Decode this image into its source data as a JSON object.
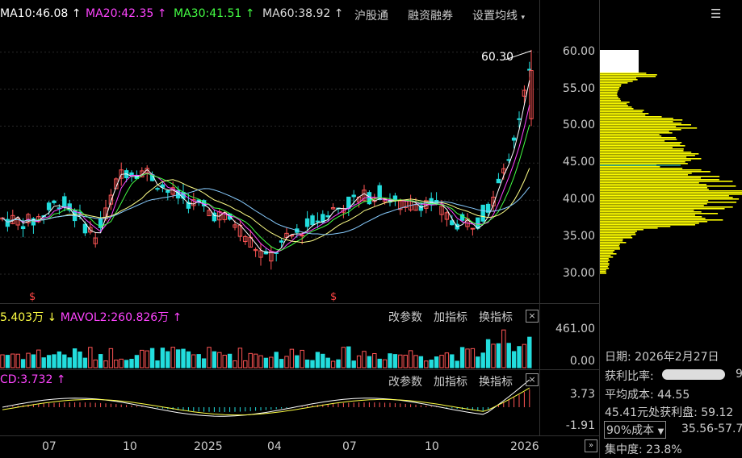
{
  "header": {
    "ma10": "MA10:46.08",
    "ma20": "MA20:42.35",
    "ma30": "MA30:41.51",
    "ma60": "MA60:38.92",
    "hgt": "沪股通",
    "margin": "融资融券",
    "settings": "设置均线"
  },
  "price_axis": [
    "60.00",
    "55.00",
    "50.00",
    "45.00",
    "40.00",
    "35.00",
    "30.00"
  ],
  "peak_label": "60.30",
  "vol_panel": {
    "mavol1": "5.403万",
    "mavol2": "MAVOL2:260.826万",
    "axis": [
      "461.00",
      "0.00"
    ]
  },
  "macd_panel": {
    "label": "CD:3.732",
    "axis": [
      "3.73",
      "-1.91"
    ]
  },
  "buttons": {
    "param": "改参数",
    "add": "加指标",
    "swap": "换指标",
    "close": "×"
  },
  "x_axis": [
    "07",
    "10",
    "2025",
    "04",
    "07",
    "10",
    "2026"
  ],
  "info": {
    "date_label": "日期:",
    "date": "2026年2月27日",
    "profit_ratio_label": "获利比率:",
    "profit_ratio_trail": "9",
    "avg_cost_label": "平均成本:",
    "avg_cost": "44.55",
    "profit_line": "45.41元处获利盘:",
    "profit_val": "59.12",
    "cost_select": "90%成本",
    "cost_range": "35.56-57.7",
    "concentration_label": "集中度:",
    "concentration": "23.8%"
  },
  "colors": {
    "ma10": "#ffffff",
    "ma20": "#ff44ff",
    "ma30": "#44ff44",
    "ma60": "#cccccc",
    "up": "#ff5555",
    "down": "#22dddd",
    "chip": "#ffff00"
  }
}
